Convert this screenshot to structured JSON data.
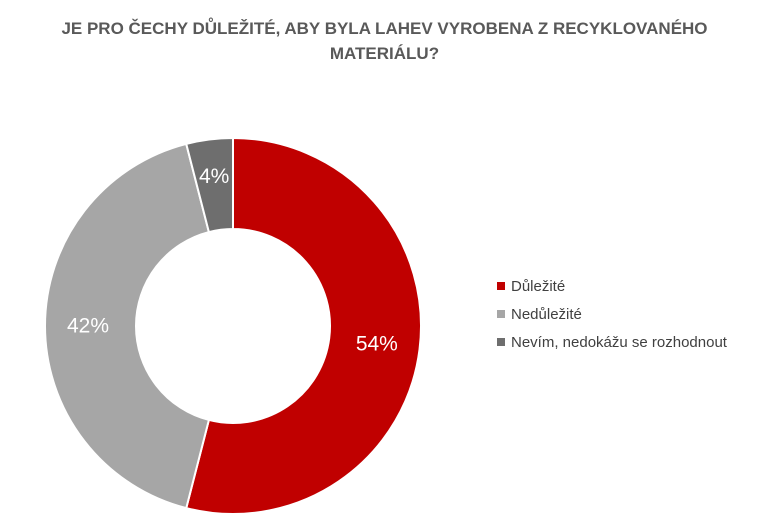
{
  "chart_data": {
    "type": "pie",
    "title_line1": "JE PRO ČECHY DŮLEŽITÉ, ABY BYLA LAHEV VYROBENA Z RECYKLOVANÉHO",
    "title_line2": "MATERIÁLU?",
    "donut": true,
    "legend_position": "right",
    "categories": [
      "Důležité",
      "Nedůležité",
      "Nevím, nedokážu se rozhodnout"
    ],
    "values": [
      54,
      42,
      4
    ],
    "labels": [
      "54%",
      "42%",
      "4%"
    ],
    "colors": [
      "#C00000",
      "#A6A6A6",
      "#6E6E6E"
    ]
  }
}
